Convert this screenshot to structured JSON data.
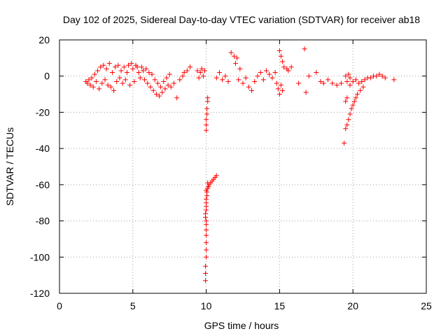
{
  "chart_data": {
    "type": "scatter",
    "title": "Day 102 of 2025, Sidereal Day-to-day VTEC variation (SDTVAR) for receiver ab18",
    "xlabel": "GPS time / hours",
    "ylabel": "SDTVAR / TECUs",
    "xlim": [
      0,
      25
    ],
    "ylim": [
      -120,
      20
    ],
    "xticks": [
      0,
      5,
      10,
      15,
      20,
      25
    ],
    "yticks": [
      -120,
      -100,
      -80,
      -60,
      -40,
      -20,
      0,
      20
    ],
    "grid": true,
    "marker": "+",
    "color": "#ff0000",
    "series": [
      {
        "name": "SDTVAR",
        "points": [
          [
            1.8,
            -3
          ],
          [
            1.9,
            -4
          ],
          [
            2.0,
            -2
          ],
          [
            2.1,
            -5
          ],
          [
            2.2,
            -1
          ],
          [
            2.3,
            -6
          ],
          [
            2.4,
            1
          ],
          [
            2.5,
            -3
          ],
          [
            2.6,
            3
          ],
          [
            2.7,
            -7
          ],
          [
            2.8,
            5
          ],
          [
            2.9,
            -4
          ],
          [
            3.0,
            6
          ],
          [
            3.1,
            -2
          ],
          [
            3.2,
            4
          ],
          [
            3.3,
            -5
          ],
          [
            3.4,
            7
          ],
          [
            3.5,
            -6
          ],
          [
            3.6,
            2
          ],
          [
            3.7,
            -8
          ],
          [
            3.8,
            5
          ],
          [
            3.9,
            -3
          ],
          [
            4.0,
            6
          ],
          [
            4.1,
            -1
          ],
          [
            4.2,
            3
          ],
          [
            4.3,
            -4
          ],
          [
            4.4,
            5
          ],
          [
            4.5,
            -2
          ],
          [
            4.6,
            2
          ],
          [
            4.7,
            6
          ],
          [
            4.8,
            -5
          ],
          [
            4.9,
            7
          ],
          [
            5.0,
            4
          ],
          [
            5.1,
            -3
          ],
          [
            5.2,
            6
          ],
          [
            5.3,
            5
          ],
          [
            5.4,
            2
          ],
          [
            5.5,
            -1
          ],
          [
            5.6,
            5
          ],
          [
            5.7,
            3
          ],
          [
            5.8,
            -2
          ],
          [
            5.9,
            4
          ],
          [
            6.0,
            -4
          ],
          [
            6.1,
            2
          ],
          [
            6.2,
            -6
          ],
          [
            6.3,
            1
          ],
          [
            6.4,
            -8
          ],
          [
            6.5,
            -2
          ],
          [
            6.6,
            -10
          ],
          [
            6.7,
            -4
          ],
          [
            6.8,
            -11
          ],
          [
            6.9,
            -6
          ],
          [
            7.0,
            -9
          ],
          [
            7.1,
            -3
          ],
          [
            7.2,
            -7
          ],
          [
            7.3,
            -1
          ],
          [
            7.4,
            -5
          ],
          [
            7.5,
            1
          ],
          [
            7.6,
            -6
          ],
          [
            7.8,
            -4
          ],
          [
            8.0,
            -12
          ],
          [
            8.2,
            -2
          ],
          [
            8.4,
            0
          ],
          [
            8.5,
            2
          ],
          [
            8.7,
            3
          ],
          [
            8.9,
            5
          ],
          [
            9.4,
            3
          ],
          [
            9.5,
            -1
          ],
          [
            9.6,
            2
          ],
          [
            9.7,
            4
          ],
          [
            9.8,
            0
          ],
          [
            9.9,
            3
          ],
          [
            10.1,
            -12
          ],
          [
            10.1,
            -14
          ],
          [
            10.05,
            -18
          ],
          [
            10.05,
            -21
          ],
          [
            10.0,
            -24
          ],
          [
            10.0,
            -27
          ],
          [
            10.0,
            -30
          ],
          [
            10.0,
            -63
          ],
          [
            10.05,
            -64
          ],
          [
            10.1,
            -62
          ],
          [
            10.15,
            -61
          ],
          [
            10.2,
            -60
          ],
          [
            10.3,
            -59
          ],
          [
            10.4,
            -58
          ],
          [
            10.5,
            -57
          ],
          [
            10.6,
            -56
          ],
          [
            10.7,
            -55
          ],
          [
            10.1,
            -59
          ],
          [
            10.05,
            -66
          ],
          [
            10.0,
            -68
          ],
          [
            10.0,
            -70
          ],
          [
            10.0,
            -72
          ],
          [
            10.0,
            -74
          ],
          [
            9.95,
            -76
          ],
          [
            9.95,
            -78
          ],
          [
            10.0,
            -80
          ],
          [
            10.0,
            -82
          ],
          [
            10.0,
            -85
          ],
          [
            10.0,
            -88
          ],
          [
            10.0,
            -92
          ],
          [
            10.0,
            -96
          ],
          [
            10.0,
            -100
          ],
          [
            9.95,
            -105
          ],
          [
            9.95,
            -109
          ],
          [
            9.95,
            -113
          ],
          [
            10.7,
            -1
          ],
          [
            10.9,
            2
          ],
          [
            11.1,
            -2
          ],
          [
            11.3,
            0
          ],
          [
            11.5,
            -3
          ],
          [
            11.7,
            13
          ],
          [
            11.9,
            11
          ],
          [
            12.0,
            7
          ],
          [
            12.1,
            10
          ],
          [
            12.3,
            4
          ],
          [
            12.2,
            -2
          ],
          [
            12.5,
            -4
          ],
          [
            12.7,
            -1
          ],
          [
            12.9,
            -6
          ],
          [
            13.1,
            -8
          ],
          [
            13.3,
            -3
          ],
          [
            13.5,
            0
          ],
          [
            13.7,
            2
          ],
          [
            13.9,
            -2
          ],
          [
            14.1,
            3
          ],
          [
            14.3,
            1
          ],
          [
            14.5,
            -1
          ],
          [
            14.7,
            2
          ],
          [
            14.8,
            -4
          ],
          [
            14.9,
            -7
          ],
          [
            15.0,
            -10
          ],
          [
            15.1,
            -5
          ],
          [
            15.2,
            -8
          ],
          [
            15.0,
            14
          ],
          [
            15.1,
            11
          ],
          [
            15.2,
            8
          ],
          [
            15.3,
            5
          ],
          [
            15.5,
            4
          ],
          [
            15.6,
            3
          ],
          [
            15.8,
            5
          ],
          [
            16.3,
            -4
          ],
          [
            16.7,
            15
          ],
          [
            16.8,
            -9
          ],
          [
            17.0,
            0
          ],
          [
            17.5,
            2
          ],
          [
            17.8,
            -3
          ],
          [
            18.0,
            -4
          ],
          [
            18.3,
            -2
          ],
          [
            18.6,
            -4
          ],
          [
            18.9,
            -5
          ],
          [
            19.2,
            -4
          ],
          [
            19.4,
            -37
          ],
          [
            19.5,
            -29
          ],
          [
            19.6,
            -27
          ],
          [
            19.7,
            -24
          ],
          [
            19.8,
            -21
          ],
          [
            19.9,
            -18
          ],
          [
            20.0,
            -16
          ],
          [
            20.1,
            -14
          ],
          [
            20.2,
            -12
          ],
          [
            20.3,
            -10
          ],
          [
            20.5,
            -8
          ],
          [
            20.7,
            -6
          ],
          [
            19.5,
            -14
          ],
          [
            19.6,
            -12
          ],
          [
            19.8,
            -5
          ],
          [
            19.6,
            -3
          ],
          [
            19.5,
            0
          ],
          [
            19.7,
            1
          ],
          [
            19.8,
            -1
          ],
          [
            20.0,
            -3
          ],
          [
            20.2,
            -2
          ],
          [
            20.4,
            -4
          ],
          [
            20.6,
            -3
          ],
          [
            20.8,
            -2
          ],
          [
            21.0,
            -1
          ],
          [
            21.2,
            -1
          ],
          [
            21.4,
            0
          ],
          [
            21.6,
            0
          ],
          [
            21.8,
            1
          ],
          [
            22.0,
            0
          ],
          [
            22.2,
            -1
          ],
          [
            22.8,
            -2
          ]
        ]
      }
    ]
  }
}
